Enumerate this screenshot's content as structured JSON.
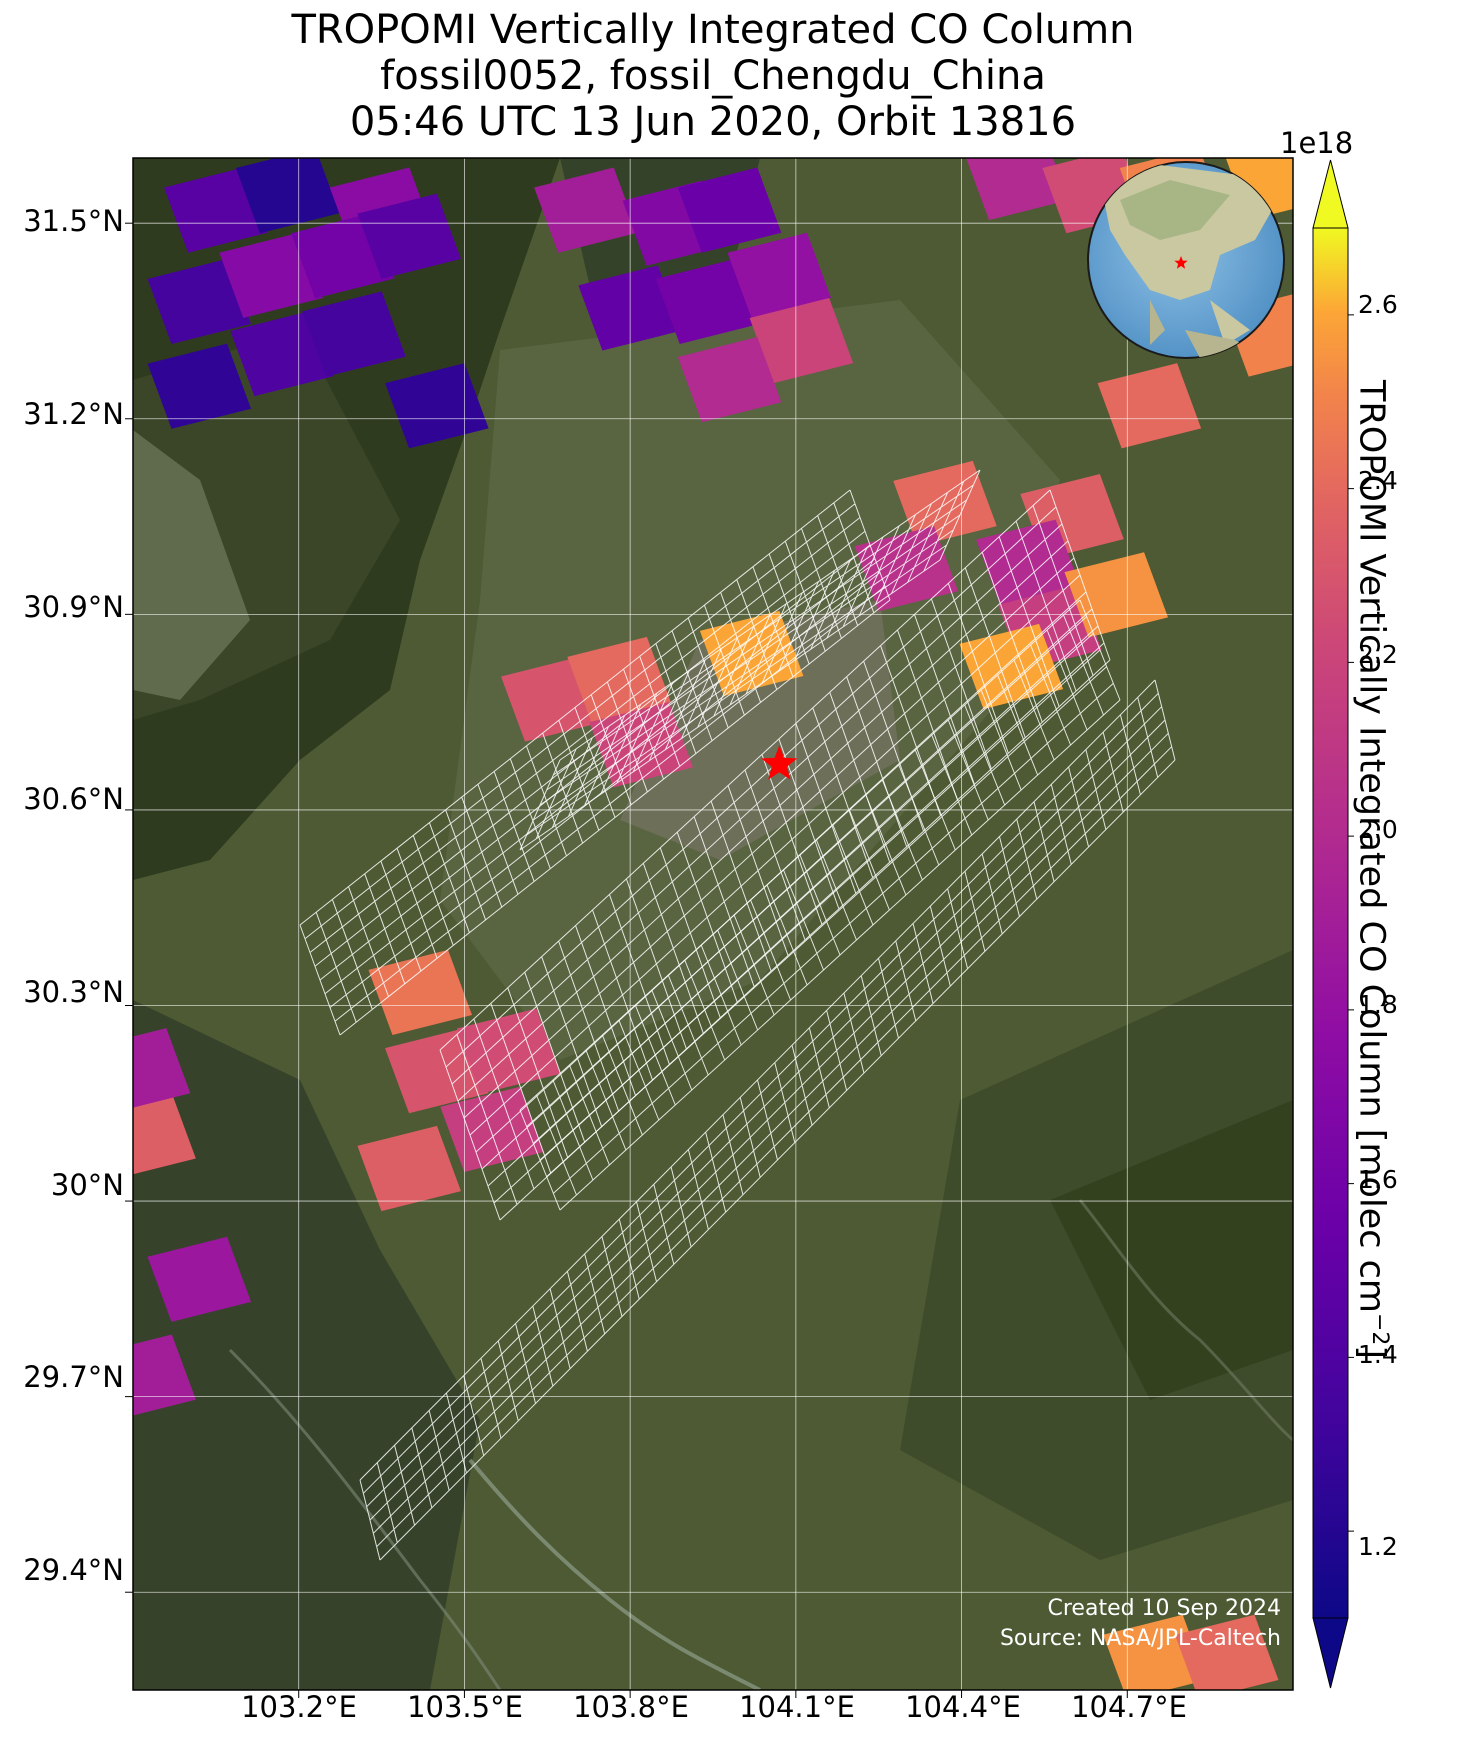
{
  "title": {
    "line1": "TROPOMI Vertically Integrated CO Column",
    "line2": "fossil0052, fossil_Chengdu_China",
    "line3": "05:46 UTC 13 Jun 2020, Orbit 13816"
  },
  "map": {
    "lon_range": [
      102.9,
      105.0
    ],
    "lat_range": [
      29.25,
      31.6
    ],
    "lat_ticks": [
      "31.5°N",
      "31.2°N",
      "30.9°N",
      "30.6°N",
      "30.3°N",
      "30°N",
      "29.7°N",
      "29.4°N"
    ],
    "lon_ticks": [
      "103.2°E",
      "103.5°E",
      "103.8°E",
      "104.1°E",
      "104.4°E",
      "104.7°E"
    ],
    "target_marker": {
      "lon": 104.07,
      "lat": 30.67,
      "symbol": "red star"
    },
    "grid": true,
    "inset_globe": {
      "placement": "top-right",
      "marker": "red star"
    }
  },
  "colorbar": {
    "label": "TROPOMI Vertically Integrated CO Column [molec cm",
    "label_sup": "−2",
    "label_end": "]",
    "exponent": "1e18",
    "ticks": [
      "1.2",
      "1.4",
      "1.6",
      "1.8",
      "2.0",
      "2.2",
      "2.4",
      "2.6"
    ],
    "range": [
      1.1,
      2.7
    ],
    "colormap": "plasma",
    "extend": "both"
  },
  "credit": {
    "line1": "Created 10 Sep 2024",
    "line2": "Source: NASA/JPL-Caltech"
  },
  "colors": {
    "terrain_dark": "#2f3b1f",
    "terrain_plain": "#4d5a33",
    "grid_line": "#ffffff",
    "footprint_mesh": "#ffffff",
    "marker": "#ff0000"
  },
  "chart_data": {
    "type": "heatmap",
    "units": "molec cm-2 (x1e18)",
    "pixels": [
      {
        "lon": 103.05,
        "lat": 31.52,
        "value": 1.45
      },
      {
        "lon": 103.18,
        "lat": 31.55,
        "value": 1.2
      },
      {
        "lon": 103.35,
        "lat": 31.52,
        "value": 1.75
      },
      {
        "lon": 103.02,
        "lat": 31.38,
        "value": 1.35
      },
      {
        "lon": 103.15,
        "lat": 31.42,
        "value": 1.72
      },
      {
        "lon": 103.28,
        "lat": 31.45,
        "value": 1.6
      },
      {
        "lon": 103.4,
        "lat": 31.48,
        "value": 1.45
      },
      {
        "lon": 103.02,
        "lat": 31.25,
        "value": 1.25
      },
      {
        "lon": 103.17,
        "lat": 31.3,
        "value": 1.4
      },
      {
        "lon": 103.3,
        "lat": 31.33,
        "value": 1.35
      },
      {
        "lon": 103.45,
        "lat": 31.22,
        "value": 1.25
      },
      {
        "lon": 103.72,
        "lat": 31.52,
        "value": 1.9
      },
      {
        "lon": 103.88,
        "lat": 31.5,
        "value": 1.7
      },
      {
        "lon": 103.98,
        "lat": 31.52,
        "value": 1.55
      },
      {
        "lon": 103.8,
        "lat": 31.37,
        "value": 1.5
      },
      {
        "lon": 103.94,
        "lat": 31.38,
        "value": 1.6
      },
      {
        "lon": 104.07,
        "lat": 31.42,
        "value": 1.8
      },
      {
        "lon": 104.11,
        "lat": 31.32,
        "value": 2.2
      },
      {
        "lon": 103.98,
        "lat": 31.26,
        "value": 2.0
      },
      {
        "lon": 104.5,
        "lat": 31.57,
        "value": 2.0
      },
      {
        "lon": 104.64,
        "lat": 31.55,
        "value": 2.25
      },
      {
        "lon": 104.78,
        "lat": 31.55,
        "value": 2.5
      },
      {
        "lon": 104.84,
        "lat": 31.36,
        "value": 2.62
      },
      {
        "lon": 104.97,
        "lat": 31.33,
        "value": 2.5
      },
      {
        "lon": 104.74,
        "lat": 31.22,
        "value": 2.4
      },
      {
        "lon": 104.97,
        "lat": 31.57,
        "value": 2.6
      },
      {
        "lon": 104.37,
        "lat": 31.07,
        "value": 2.4
      },
      {
        "lon": 104.3,
        "lat": 30.97,
        "value": 2.05
      },
      {
        "lon": 104.6,
        "lat": 31.05,
        "value": 2.35
      },
      {
        "lon": 104.52,
        "lat": 30.98,
        "value": 2.0
      },
      {
        "lon": 104.56,
        "lat": 30.88,
        "value": 2.15
      },
      {
        "lon": 104.68,
        "lat": 30.93,
        "value": 2.55
      },
      {
        "lon": 104.49,
        "lat": 30.82,
        "value": 2.6
      },
      {
        "lon": 104.02,
        "lat": 30.84,
        "value": 2.6
      },
      {
        "lon": 103.66,
        "lat": 30.77,
        "value": 2.3
      },
      {
        "lon": 103.78,
        "lat": 30.8,
        "value": 2.4
      },
      {
        "lon": 103.82,
        "lat": 30.7,
        "value": 2.2
      },
      {
        "lon": 103.42,
        "lat": 30.32,
        "value": 2.45
      },
      {
        "lon": 103.45,
        "lat": 30.2,
        "value": 2.3
      },
      {
        "lon": 103.58,
        "lat": 30.23,
        "value": 2.25
      },
      {
        "lon": 103.55,
        "lat": 30.11,
        "value": 2.15
      },
      {
        "lon": 103.4,
        "lat": 30.05,
        "value": 2.35
      },
      {
        "lon": 102.92,
        "lat": 30.1,
        "value": 2.35
      },
      {
        "lon": 102.91,
        "lat": 30.2,
        "value": 1.9
      },
      {
        "lon": 103.02,
        "lat": 29.88,
        "value": 1.85
      },
      {
        "lon": 102.92,
        "lat": 29.73,
        "value": 1.9
      },
      {
        "lon": 104.75,
        "lat": 29.3,
        "value": 2.55
      },
      {
        "lon": 104.88,
        "lat": 29.3,
        "value": 2.4
      }
    ]
  }
}
